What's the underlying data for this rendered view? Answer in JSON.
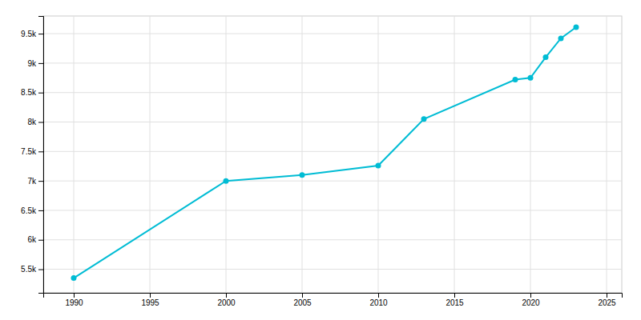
{
  "chart_data": {
    "type": "line",
    "x": [
      1990,
      2000,
      2005,
      2010,
      2013,
      2019,
      2020,
      2021,
      2022,
      2023
    ],
    "values": [
      5350,
      7000,
      7100,
      7260,
      8050,
      8720,
      8750,
      9100,
      9420,
      9610
    ],
    "color": "#00BCD4",
    "marker": "circle",
    "xlim": [
      1988,
      2026
    ],
    "ylim": [
      5100,
      9800
    ],
    "xticks": [
      1990,
      1995,
      2000,
      2005,
      2010,
      2015,
      2020,
      2025
    ],
    "yticks": [
      {
        "value": 5500,
        "label": "5.5k"
      },
      {
        "value": 6000,
        "label": "6k"
      },
      {
        "value": 6500,
        "label": "6.5k"
      },
      {
        "value": 7000,
        "label": "7k"
      },
      {
        "value": 7500,
        "label": "7.5k"
      },
      {
        "value": 8000,
        "label": "8k"
      },
      {
        "value": 8500,
        "label": "8.5k"
      },
      {
        "value": 9000,
        "label": "9k"
      },
      {
        "value": 9500,
        "label": "9.5k"
      }
    ],
    "grid": true
  }
}
